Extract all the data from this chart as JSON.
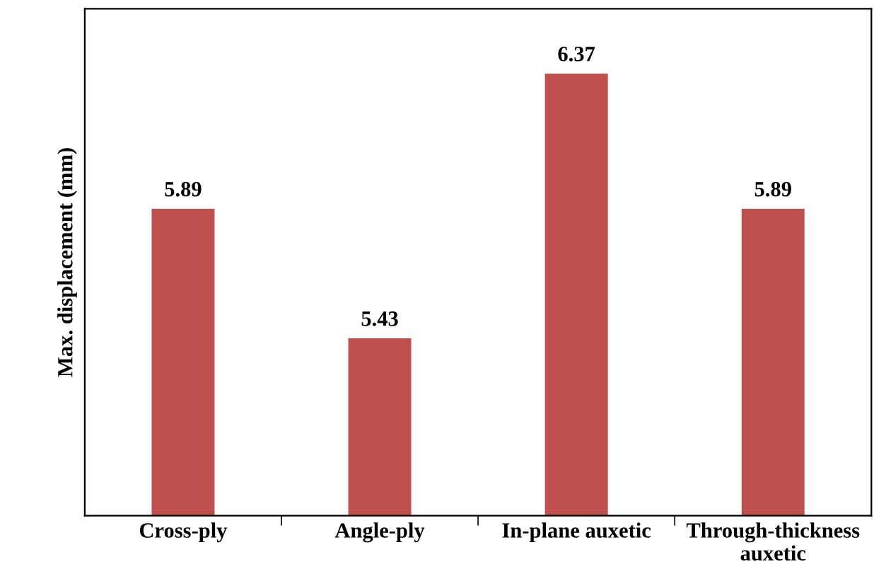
{
  "chart_data": {
    "type": "bar",
    "ylabel": "Max. displacement (mm)",
    "categories": [
      "Cross-ply",
      "Angle-ply",
      "In-plane auxetic",
      "Through-thickness\nauxetic"
    ],
    "values": [
      5.89,
      5.43,
      6.37,
      5.89
    ],
    "color": "#c0504d",
    "ylim": [
      4.8,
      6.6
    ],
    "data_labels": true,
    "tick_labels": "x",
    "grid": false,
    "legend": false
  }
}
